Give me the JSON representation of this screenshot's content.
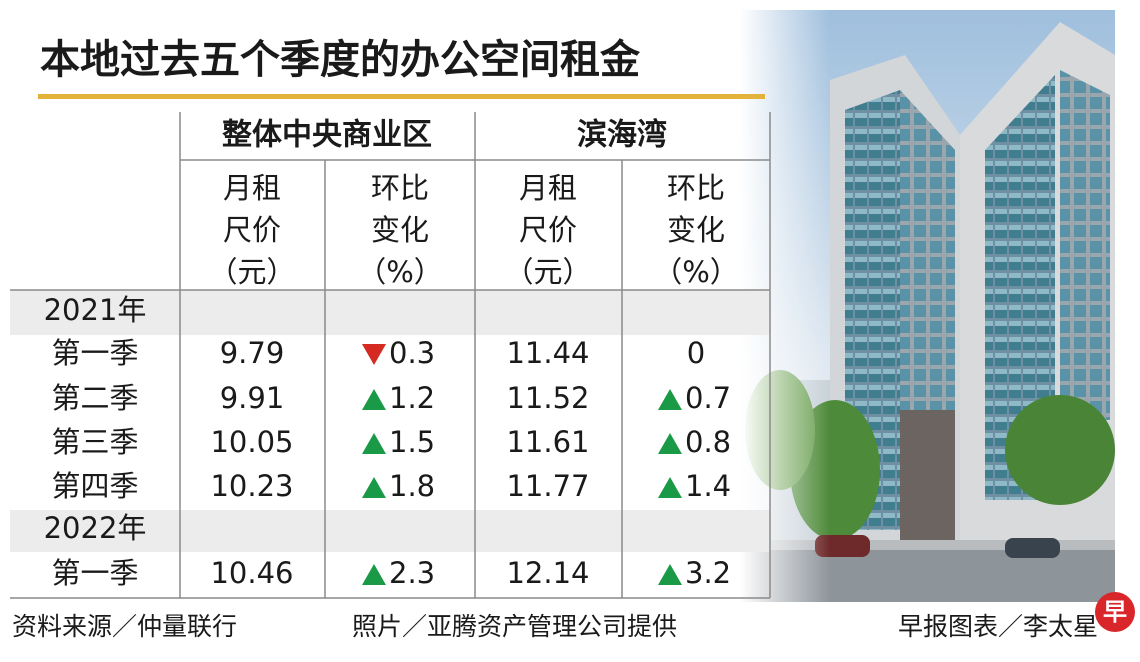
{
  "header": {
    "title": "本地过去五个季度的办公空间租金"
  },
  "table": {
    "groups": [
      "整体中央商业区",
      "滨海湾"
    ],
    "subheaders": [
      [
        "月租",
        "尺价",
        "（元）"
      ],
      [
        "环比",
        "变化",
        "（%）"
      ],
      [
        "月租",
        "尺价",
        "（元）"
      ],
      [
        "环比",
        "变化",
        "（%）"
      ]
    ],
    "rows": [
      {
        "label": "2021年"
      },
      {
        "label": "第一季",
        "cells": [
          {
            "text": "9.79"
          },
          {
            "text": "0.3",
            "trend": "down"
          },
          {
            "text": "11.44"
          },
          {
            "text": "0"
          }
        ]
      },
      {
        "label": "第二季",
        "cells": [
          {
            "text": "9.91"
          },
          {
            "text": "1.2",
            "trend": "up"
          },
          {
            "text": "11.52"
          },
          {
            "text": "0.7",
            "trend": "up"
          }
        ]
      },
      {
        "label": "第三季",
        "cells": [
          {
            "text": "10.05"
          },
          {
            "text": "1.5",
            "trend": "up"
          },
          {
            "text": "11.61"
          },
          {
            "text": "0.8",
            "trend": "up"
          }
        ]
      },
      {
        "label": "第四季",
        "cells": [
          {
            "text": "10.23"
          },
          {
            "text": "1.8",
            "trend": "up"
          },
          {
            "text": "11.77"
          },
          {
            "text": "1.4",
            "trend": "up"
          }
        ]
      },
      {
        "label": "2022年"
      },
      {
        "label": "第一季",
        "cells": [
          {
            "text": "10.46"
          },
          {
            "text": "2.3",
            "trend": "up"
          },
          {
            "text": "12.14"
          },
          {
            "text": "3.2",
            "trend": "up"
          }
        ]
      }
    ]
  },
  "footer": {
    "source": "资料来源／仲量联行",
    "photo": "照片／亚腾资产管理公司提供",
    "credit": "早报图表／李太星",
    "logo": "早"
  }
}
